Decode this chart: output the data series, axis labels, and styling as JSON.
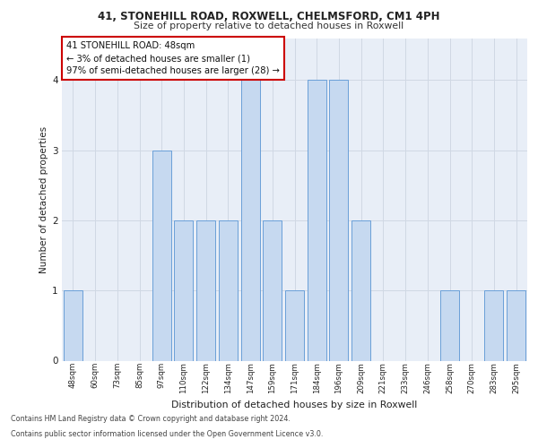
{
  "title1": "41, STONEHILL ROAD, ROXWELL, CHELMSFORD, CM1 4PH",
  "title2": "Size of property relative to detached houses in Roxwell",
  "xlabel": "Distribution of detached houses by size in Roxwell",
  "ylabel": "Number of detached properties",
  "categories": [
    "48sqm",
    "60sqm",
    "73sqm",
    "85sqm",
    "97sqm",
    "110sqm",
    "122sqm",
    "134sqm",
    "147sqm",
    "159sqm",
    "171sqm",
    "184sqm",
    "196sqm",
    "209sqm",
    "221sqm",
    "233sqm",
    "246sqm",
    "258sqm",
    "270sqm",
    "283sqm",
    "295sqm"
  ],
  "values": [
    1,
    0,
    0,
    0,
    3,
    2,
    2,
    2,
    4,
    2,
    1,
    4,
    4,
    2,
    0,
    0,
    0,
    1,
    0,
    1,
    1
  ],
  "bar_color": "#c6d9f0",
  "bar_edge_color": "#6a9fd8",
  "annotation_text": "41 STONEHILL ROAD: 48sqm\n← 3% of detached houses are smaller (1)\n97% of semi-detached houses are larger (28) →",
  "annotation_box_color": "#ffffff",
  "annotation_box_edge": "#cc0000",
  "ylim": [
    0,
    4.6
  ],
  "yticks": [
    0,
    1,
    2,
    3,
    4
  ],
  "grid_color": "#d0d8e4",
  "bg_color": "#e8eef7",
  "footer1": "Contains HM Land Registry data © Crown copyright and database right 2024.",
  "footer2": "Contains public sector information licensed under the Open Government Licence v3.0."
}
